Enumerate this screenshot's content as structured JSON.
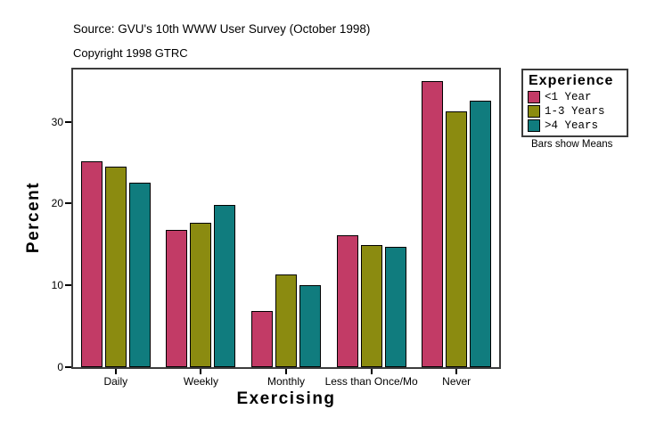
{
  "header": {
    "source": "Source: GVU's 10th WWW User Survey (October 1998)",
    "copyright": "Copyright 1998 GTRC"
  },
  "legend": {
    "title": "Experience",
    "note": "Bars show Means"
  },
  "chart_data": {
    "type": "bar",
    "title": "Source: GVU's 10th WWW User Survey (October 1998)",
    "categories": [
      "Daily",
      "Weekly",
      "Monthly",
      "Less than Once/Mo",
      "Never"
    ],
    "series": [
      {
        "name": "<1 Year",
        "color": "#c23b66",
        "values": [
          25.2,
          16.8,
          6.9,
          16.1,
          35.0
        ]
      },
      {
        "name": "1-3 Years",
        "color": "#8b8b10",
        "values": [
          24.5,
          17.7,
          11.3,
          14.9,
          31.3
        ]
      },
      {
        "name": ">4 Years",
        "color": "#107c7e",
        "values": [
          22.6,
          19.8,
          10.0,
          14.7,
          32.6
        ]
      }
    ],
    "xlabel": "Exercising",
    "ylabel": "Percent",
    "yticks": [
      0,
      10,
      20,
      30
    ],
    "ylim": [
      0,
      36.4
    ],
    "grid": false,
    "legend_position": "right",
    "annotation": "Bars show Means",
    "bar_border_color": "#000000",
    "frame_color": "#3c3c3c"
  }
}
